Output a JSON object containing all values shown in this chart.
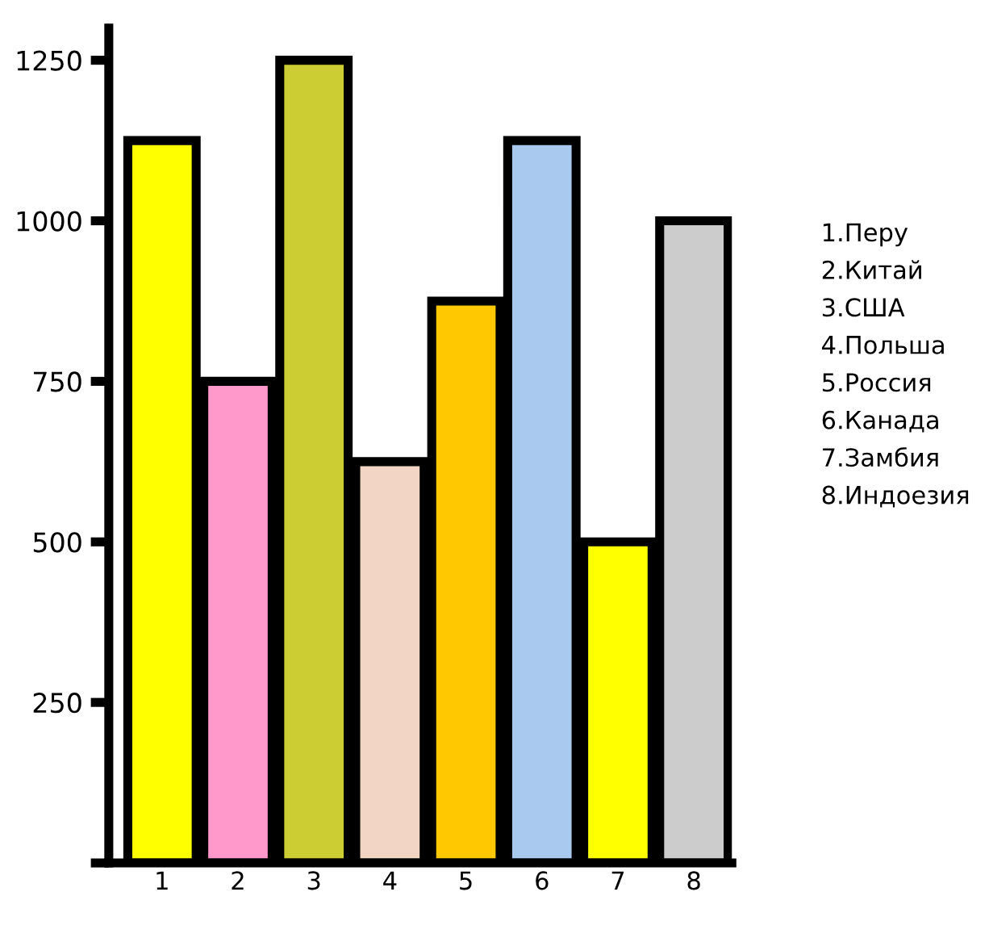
{
  "chart_data": {
    "type": "bar",
    "categories": [
      "1",
      "2",
      "3",
      "4",
      "5",
      "6",
      "7",
      "8"
    ],
    "values": [
      1125,
      750,
      1250,
      625,
      875,
      1125,
      500,
      1000
    ],
    "colors": [
      "#ffff00",
      "#ff99cc",
      "#cccc33",
      "#f2d5c4",
      "#ffc800",
      "#a9c9ef",
      "#ffff00",
      "#cccccc"
    ],
    "ylim": [
      0,
      1300
    ],
    "yticks": [
      {
        "value": 0,
        "label": null
      },
      250,
      500,
      750,
      1000,
      1250
    ],
    "annotations": [
      "1.Перу",
      "2.Китай",
      "3.США",
      "4.Польша",
      "5.Россия",
      "6.Канада",
      "7.Замбия",
      "8.Индоезия"
    ]
  }
}
